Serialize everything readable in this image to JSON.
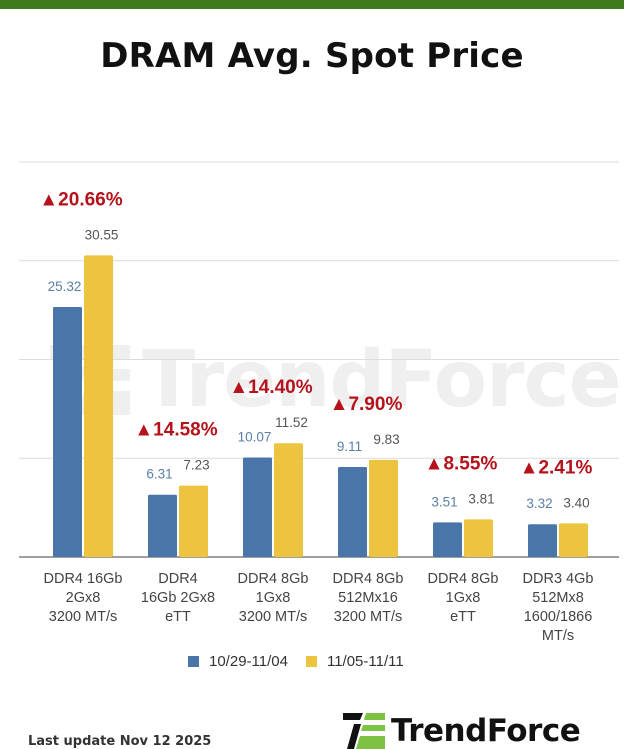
{
  "header": {
    "title": "DRAM Avg. Spot Price"
  },
  "footer": {
    "last_update": "Last update Nov 12  2025",
    "logo_text": "TrendForce"
  },
  "watermark": {
    "text": "TrendForce"
  },
  "colors": {
    "series1": "#4a75a8",
    "series2": "#ecc440",
    "change": "#b5121b",
    "topbar": "#3f7a1f",
    "grid": "#dcdcdc"
  },
  "chart_data": {
    "type": "bar",
    "title": "DRAM Avg. Spot Price",
    "xlabel": "",
    "ylabel": "",
    "ylim": [
      0,
      40
    ],
    "grid": true,
    "legend_position": "bottom",
    "categories": [
      [
        "DDR4 16Gb",
        "2Gx8",
        "3200 MT/s"
      ],
      [
        "DDR4",
        "16Gb 2Gx8",
        "eTT"
      ],
      [
        "DDR4 8Gb",
        "1Gx8",
        "3200 MT/s"
      ],
      [
        "DDR4 8Gb",
        "512Mx16",
        "3200 MT/s"
      ],
      [
        "DDR4 8Gb",
        "1Gx8",
        "eTT"
      ],
      [
        "DDR3 4Gb",
        "512Mx8",
        "1600/1866",
        "MT/s"
      ]
    ],
    "series": [
      {
        "name": "10/29-11/04",
        "values": [
          25.32,
          6.31,
          10.07,
          9.11,
          3.51,
          3.32
        ],
        "labels": [
          "25.32",
          "6.31",
          "10.07",
          "9.11",
          "3.51",
          "3.32"
        ]
      },
      {
        "name": "11/05-11/11",
        "values": [
          30.55,
          7.23,
          11.52,
          9.83,
          3.81,
          3.4
        ],
        "labels": [
          "30.55",
          "7.23",
          "11.52",
          "9.83",
          "3.81",
          "3.40"
        ]
      }
    ],
    "annotations": [
      "▲20.66%",
      "▲14.58%",
      "▲14.40%",
      "▲7.90%",
      "▲8.55%",
      "▲2.41%"
    ]
  }
}
